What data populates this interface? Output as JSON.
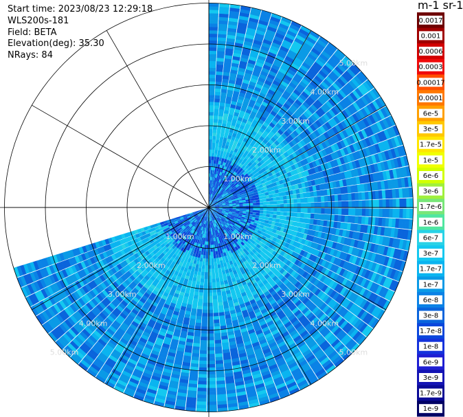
{
  "info": {
    "start_time": "Start time: 2023/08/23 12:29:18",
    "instrument": "WLS200s-181",
    "field": "Field: BETA",
    "elevation": "Elevation(deg): 35.30",
    "nrays": "NRays: 84"
  },
  "chart_data": {
    "type": "heatmap",
    "projection": "polar-ppi",
    "title": "",
    "range_ring_labels": [
      "1.00km",
      "2.00km",
      "3.00km",
      "4.00km",
      "5.00km"
    ],
    "range_rings_km": [
      1,
      2,
      3,
      4,
      5
    ],
    "max_range_km": 5.0,
    "azimuth_spokes_deg": [
      0,
      30,
      60,
      90,
      120,
      150,
      180,
      210,
      240,
      270,
      300,
      330
    ],
    "scan_sector_deg": [
      0,
      253
    ],
    "nrays": 84,
    "colorbar": {
      "unit": "m-1 sr-1",
      "labels": [
        "0.0017",
        "0.001",
        "0.0006",
        "0.0003",
        "0.00017",
        "0.0001",
        "6e-5",
        "3e-5",
        "1.7e-5",
        "1e-5",
        "6e-6",
        "3e-6",
        "1.7e-6",
        "1e-6",
        "6e-7",
        "3e-7",
        "1.7e-7",
        "1e-7",
        "6e-8",
        "3e-8",
        "1.7e-8",
        "1e-8",
        "6e-9",
        "3e-9",
        "1.7e-9",
        "1e-9"
      ],
      "colors": [
        "#6e0000",
        "#a00000",
        "#d20000",
        "#f00a0a",
        "#ff5000",
        "#ff7800",
        "#ffa000",
        "#ffc800",
        "#ffe600",
        "#f0ff00",
        "#d2ff00",
        "#a0f03c",
        "#78e678",
        "#50e6a0",
        "#28d2e6",
        "#14c8f0",
        "#0ab4f0",
        "#0a9ae6",
        "#0a82e6",
        "#0a64dc",
        "#0a46dc",
        "#1432dc",
        "#1e1ed2",
        "#1414b4",
        "#0a0a96",
        "#000064"
      ]
    }
  }
}
